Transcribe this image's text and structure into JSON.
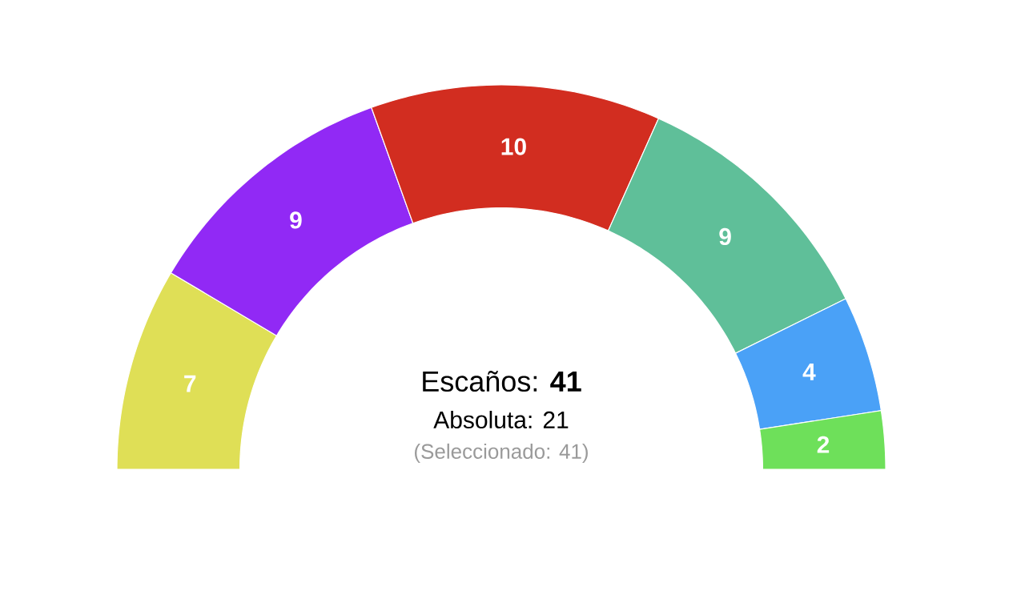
{
  "chart_data": {
    "type": "donut",
    "categories": [
      null,
      null,
      null,
      null,
      null,
      null
    ],
    "values": [
      7,
      9,
      10,
      9,
      4,
      2
    ],
    "colors": [
      "#dfdf56",
      "#9129f5",
      "#d22d20",
      "#5fbf99",
      "#4aa1f7",
      "#6ee05a"
    ],
    "data_labels": true,
    "annotations": [
      "Escaños: **41**",
      "Absoluta: 21",
      "(Seleccionado: 41)"
    ]
  }
}
